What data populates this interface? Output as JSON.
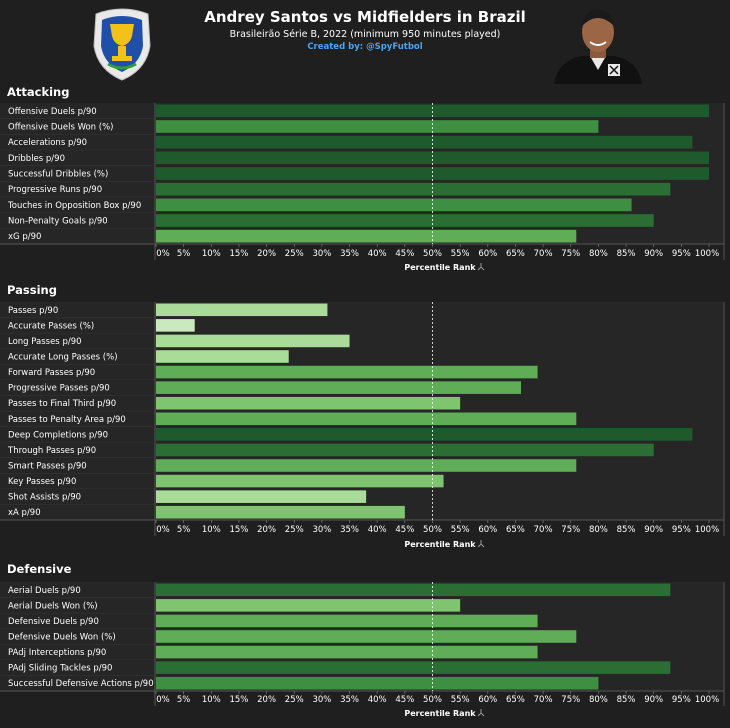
{
  "header": {
    "title": "Andrey Santos vs Midfielders in Brazil",
    "subtitle": "Brasileirão Série B, 2022 (minimum 950 minutes played)",
    "credit": "Created by: @SpyFutbol",
    "league_logo_icon": "serie-b-trophy-logo-icon",
    "player_photo_icon": "player-portrait-icon"
  },
  "colors": {
    "background": "#1f1f1f",
    "panel": "#262626",
    "bar_scale": [
      "#cbe9bf",
      "#a9dc98",
      "#7fc56f",
      "#5fae57",
      "#3f8f43",
      "#2a6e34",
      "#1f5a2c"
    ],
    "credit": "#4aa3f0"
  },
  "axis_title": "Percentile Rank",
  "sort_icon": "sort-icon",
  "chart_data": [
    {
      "type": "bar",
      "orientation": "horizontal",
      "title": "Attacking",
      "xlabel": "Percentile Rank",
      "xlim": [
        0,
        100
      ],
      "xticks": [
        "0%",
        "5%",
        "10%",
        "15%",
        "20%",
        "25%",
        "30%",
        "35%",
        "40%",
        "45%",
        "50%",
        "55%",
        "60%",
        "65%",
        "70%",
        "75%",
        "80%",
        "85%",
        "90%",
        "95%",
        "100%"
      ],
      "reference_line": 50,
      "categories": [
        "Offensive Duels p/90",
        "Offensive Duels Won (%)",
        "Accelerations p/90",
        "Dribbles p/90",
        "Successful Dribbles (%)",
        "Progressive Runs p/90",
        "Touches in Opposition Box p/90",
        "Non-Penalty Goals p/90",
        "xG p/90"
      ],
      "values": [
        100,
        80,
        97,
        100,
        100,
        93,
        86,
        90,
        76
      ]
    },
    {
      "type": "bar",
      "orientation": "horizontal",
      "title": "Passing",
      "xlabel": "Percentile Rank",
      "xlim": [
        0,
        100
      ],
      "xticks": [
        "0%",
        "5%",
        "10%",
        "15%",
        "20%",
        "25%",
        "30%",
        "35%",
        "40%",
        "45%",
        "50%",
        "55%",
        "60%",
        "65%",
        "70%",
        "75%",
        "80%",
        "85%",
        "90%",
        "95%",
        "100%"
      ],
      "reference_line": 50,
      "categories": [
        "Passes p/90",
        "Accurate Passes (%)",
        "Long Passes p/90",
        "Accurate Long Passes (%)",
        "Forward Passes p/90",
        "Progressive Passes p/90",
        "Passes to Final Third p/90",
        "Passes to Penalty Area p/90",
        "Deep Completions p/90",
        "Through Passes p/90",
        "Smart Passes p/90",
        "Key Passes p/90",
        "Shot Assists p/90",
        "xA p/90"
      ],
      "values": [
        31,
        7,
        35,
        24,
        69,
        66,
        55,
        76,
        97,
        90,
        76,
        52,
        38,
        45
      ]
    },
    {
      "type": "bar",
      "orientation": "horizontal",
      "title": "Defensive",
      "xlabel": "Percentile Rank",
      "xlim": [
        0,
        100
      ],
      "xticks": [
        "0%",
        "5%",
        "10%",
        "15%",
        "20%",
        "25%",
        "30%",
        "35%",
        "40%",
        "45%",
        "50%",
        "55%",
        "60%",
        "65%",
        "70%",
        "75%",
        "80%",
        "85%",
        "90%",
        "95%",
        "100%"
      ],
      "reference_line": 50,
      "categories": [
        "Aerial Duels p/90",
        "Aerial Duels Won (%)",
        "Defensive Duels p/90",
        "Defensive Duels Won (%)",
        "PAdj Interceptions p/90",
        "PAdj Sliding Tackles p/90",
        "Successful Defensive Actions p/90"
      ],
      "values": [
        93,
        55,
        69,
        76,
        69,
        93,
        80
      ]
    }
  ]
}
